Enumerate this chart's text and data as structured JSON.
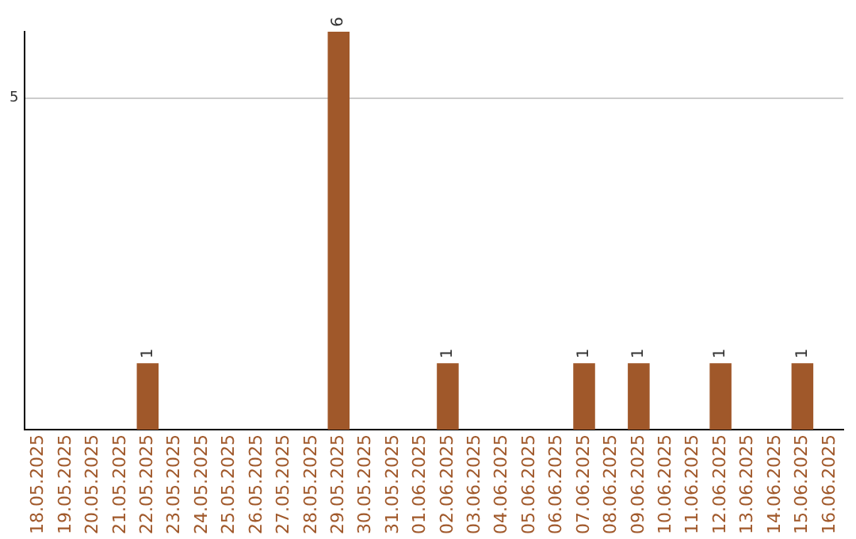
{
  "chart_data": {
    "type": "bar",
    "categories": [
      "18.05.2025",
      "19.05.2025",
      "20.05.2025",
      "21.05.2025",
      "22.05.2025",
      "23.05.2025",
      "24.05.2025",
      "25.05.2025",
      "26.05.2025",
      "27.05.2025",
      "28.05.2025",
      "29.05.2025",
      "30.05.2025",
      "31.05.2025",
      "01.06.2025",
      "02.06.2025",
      "03.06.2025",
      "04.06.2025",
      "05.06.2025",
      "06.06.2025",
      "07.06.2025",
      "08.06.2025",
      "09.06.2025",
      "10.06.2025",
      "11.06.2025",
      "12.06.2025",
      "13.06.2025",
      "14.06.2025",
      "15.06.2025",
      "16.06.2025"
    ],
    "values": [
      0,
      0,
      0,
      0,
      1,
      0,
      0,
      0,
      0,
      0,
      0,
      6,
      0,
      0,
      0,
      1,
      0,
      0,
      0,
      0,
      1,
      0,
      1,
      0,
      0,
      1,
      0,
      0,
      1,
      0
    ],
    "value_labels": [
      null,
      null,
      null,
      null,
      "1",
      null,
      null,
      null,
      null,
      null,
      null,
      "6",
      null,
      null,
      null,
      "1",
      null,
      null,
      null,
      null,
      "1",
      null,
      "1",
      null,
      null,
      "1",
      null,
      null,
      "1",
      null
    ],
    "color": "#a0582a",
    "ylim": [
      0,
      6
    ],
    "yticks": [
      5
    ],
    "grid": "y",
    "legend": false
  }
}
